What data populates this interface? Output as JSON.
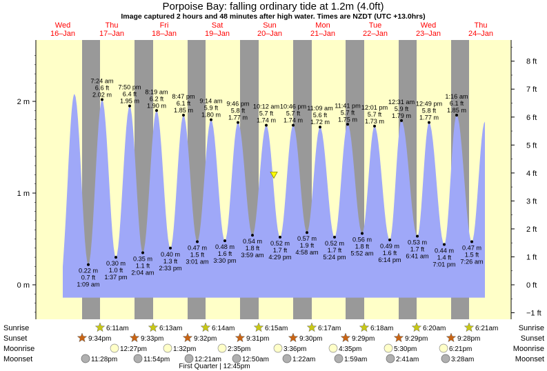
{
  "title": "Porpoise Bay: falling  ordinary tide at 1.2m (4.0ft)",
  "subtitle": "Image captured 2 hours and 48 minutes after high water. Times are NZDT (UTC +13.0hrs)",
  "colors": {
    "day": "#ffffc8",
    "night": "#999999",
    "water": "#9fa8f8",
    "red": "#ff0000",
    "sun": "#c8c814",
    "sunset": "#c86414",
    "moon": "#ffffc8",
    "moonset": "#b0b0b0"
  },
  "chart_data": {
    "type": "area",
    "y_axis_left": {
      "labels": [
        "2 m",
        "1 m",
        "0 m"
      ],
      "values": [
        2,
        1,
        0
      ]
    },
    "y_axis_right": {
      "labels": [
        "8 ft",
        "7 ft",
        "6 ft",
        "5 ft",
        "4 ft",
        "3 ft",
        "2 ft",
        "1 ft",
        "0 ft",
        "−1 ft"
      ],
      "values": [
        8,
        7,
        6,
        5,
        4,
        3,
        2,
        1,
        0,
        -1
      ]
    },
    "ylim_m": [
      -0.35,
      2.65
    ],
    "days": [
      {
        "name": "Wed",
        "date": "16–Jan"
      },
      {
        "name": "Thu",
        "date": "17–Jan"
      },
      {
        "name": "Fri",
        "date": "18–Jan"
      },
      {
        "name": "Sat",
        "date": "19–Jan"
      },
      {
        "name": "Sun",
        "date": "20–Jan"
      },
      {
        "name": "Mon",
        "date": "21–Jan"
      },
      {
        "name": "Tue",
        "date": "22–Jan"
      },
      {
        "name": "Wed",
        "date": "23–Jan"
      },
      {
        "name": "Thu",
        "date": "24–Jan"
      }
    ],
    "high_tides": [
      {
        "time": "7:24 am",
        "ft": "6.6 ft",
        "m": "2.02 m",
        "value": 2.02
      },
      {
        "time": "7:50 pm",
        "ft": "6.4 ft",
        "m": "1.95 m",
        "value": 1.95
      },
      {
        "time": "8:19 am",
        "ft": "6.2 ft",
        "m": "1.90 m",
        "value": 1.9
      },
      {
        "time": "8:47 pm",
        "ft": "6.1 ft",
        "m": "1.85 m",
        "value": 1.85
      },
      {
        "time": "9:14 am",
        "ft": "5.9 ft",
        "m": "1.80 m",
        "value": 1.8
      },
      {
        "time": "9:46 pm",
        "ft": "5.8 ft",
        "m": "1.77 m",
        "value": 1.77
      },
      {
        "time": "10:12 am",
        "ft": "5.7 ft",
        "m": "1.74 m",
        "value": 1.74
      },
      {
        "time": "10:46 pm",
        "ft": "5.7 ft",
        "m": "1.74 m",
        "value": 1.74
      },
      {
        "time": "11:09 am",
        "ft": "5.6 ft",
        "m": "1.72 m",
        "value": 1.72
      },
      {
        "time": "11:41 pm",
        "ft": "5.7 ft",
        "m": "1.75 m",
        "value": 1.75
      },
      {
        "time": "12:01 pm",
        "ft": "5.7 ft",
        "m": "1.73 m",
        "value": 1.73
      },
      {
        "time": "12:31 am",
        "ft": "5.9 ft",
        "m": "1.79 m",
        "value": 1.79
      },
      {
        "time": "12:49 pm",
        "ft": "5.8 ft",
        "m": "1.77 m",
        "value": 1.77
      },
      {
        "time": "1:16 am",
        "ft": "6.1 ft",
        "m": "1.85 m",
        "value": 1.85
      }
    ],
    "low_tides": [
      {
        "m": "0.22 m",
        "ft": "0.7 ft",
        "time": "1:09 am",
        "value": 0.22
      },
      {
        "m": "0.30 m",
        "ft": "1.0 ft",
        "time": "1:37 pm",
        "value": 0.3
      },
      {
        "m": "0.35 m",
        "ft": "1.1 ft",
        "time": "2:04 am",
        "value": 0.35
      },
      {
        "m": "0.40 m",
        "ft": "1.3 ft",
        "time": "2:33 pm",
        "value": 0.4
      },
      {
        "m": "0.47 m",
        "ft": "1.5 ft",
        "time": "3:01 am",
        "value": 0.47
      },
      {
        "m": "0.48 m",
        "ft": "1.6 ft",
        "time": "3:30 pm",
        "value": 0.48
      },
      {
        "m": "0.54 m",
        "ft": "1.8 ft",
        "time": "3:59 am",
        "value": 0.54
      },
      {
        "m": "0.52 m",
        "ft": "1.7 ft",
        "time": "4:29 pm",
        "value": 0.52
      },
      {
        "m": "0.57 m",
        "ft": "1.9 ft",
        "time": "4:58 am",
        "value": 0.57
      },
      {
        "m": "0.52 m",
        "ft": "1.7 ft",
        "time": "5:24 pm",
        "value": 0.52
      },
      {
        "m": "0.56 m",
        "ft": "1.8 ft",
        "time": "5:52 am",
        "value": 0.56
      },
      {
        "m": "0.49 m",
        "ft": "1.6 ft",
        "time": "6:14 pm",
        "value": 0.49
      },
      {
        "m": "0.53 m",
        "ft": "1.7 ft",
        "time": "6:41 am",
        "value": 0.53
      },
      {
        "m": "0.44 m",
        "ft": "1.4 ft",
        "time": "7:01 pm",
        "value": 0.44
      },
      {
        "m": "0.47 m",
        "ft": "1.5 ft",
        "time": "7:26 am",
        "value": 0.47
      }
    ],
    "current_tide_m": 1.2
  },
  "astro": {
    "row_labels": [
      "Sunrise",
      "Sunset",
      "Moonrise",
      "Moonset"
    ],
    "sunrise": [
      "6:11am",
      "6:13am",
      "6:14am",
      "6:15am",
      "6:17am",
      "6:18am",
      "6:20am",
      "6:21am"
    ],
    "sunset": [
      "9:34pm",
      "9:33pm",
      "9:32pm",
      "9:31pm",
      "9:30pm",
      "9:29pm",
      "9:29pm",
      "9:28pm"
    ],
    "moonrise": [
      "12:27pm",
      "1:32pm",
      "2:35pm",
      "3:36pm",
      "4:35pm",
      "5:30pm",
      "6:21pm"
    ],
    "moonset": [
      "11:28pm",
      "11:54pm",
      "12:21am",
      "12:50am",
      "1:22am",
      "1:59am",
      "2:41am",
      "3:28am"
    ],
    "moon_phase": "First Quarter | 12:45pm"
  }
}
